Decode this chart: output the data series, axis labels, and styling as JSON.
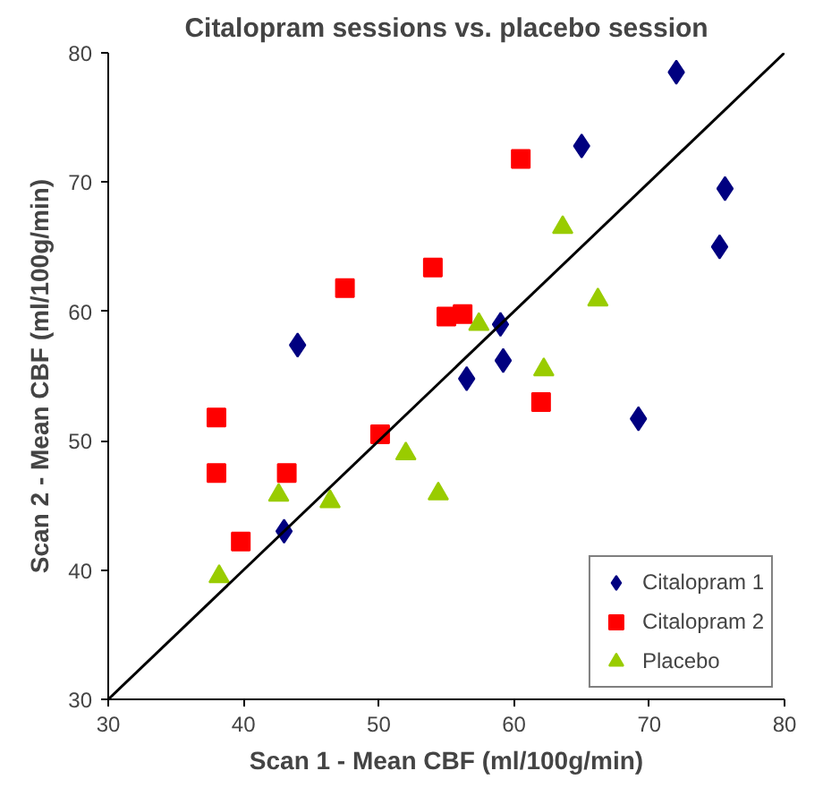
{
  "chart_data": {
    "type": "scatter",
    "title": "Citalopram sessions vs. placebo session",
    "xlabel": "Scan 1 - Mean CBF (ml/100g/min)",
    "ylabel": "Scan 2 - Mean CBF (ml/100g/min)",
    "xlim": [
      30,
      80
    ],
    "ylim": [
      30,
      80
    ],
    "xticks": [
      30,
      40,
      50,
      60,
      70,
      80
    ],
    "yticks": [
      30,
      40,
      50,
      60,
      70,
      80
    ],
    "grid": false,
    "legend": "bottom right",
    "series": [
      {
        "name": "Citalopram 1",
        "color": "#000080",
        "marker": "diamond",
        "x": [
          44,
          43,
          56.5,
          59,
          59.2,
          65,
          72,
          75.6,
          75.2,
          69.2
        ],
        "values": [
          57.4,
          43,
          54.8,
          59,
          56.2,
          72.8,
          78.5,
          69.5,
          65,
          51.7
        ]
      },
      {
        "name": "Citalopram 2",
        "color": "#ff0000",
        "marker": "square",
        "x": [
          38,
          38,
          43.2,
          39.8,
          50.1,
          47.5,
          54,
          55,
          56.2,
          60.5,
          62
        ],
        "values": [
          51.8,
          47.5,
          47.5,
          42.2,
          50.5,
          61.8,
          63.4,
          59.6,
          59.8,
          71.8,
          53
        ]
      },
      {
        "name": "Placebo",
        "color": "#99cc00",
        "marker": "triangle",
        "x": [
          38.2,
          42.6,
          46.4,
          52,
          54.4,
          57.4,
          62.2,
          63.6,
          66.2
        ],
        "values": [
          39.5,
          45.8,
          45.3,
          49,
          45.9,
          59,
          55.5,
          66.5,
          60.9
        ]
      },
      {
        "type": "line",
        "color": "#000000",
        "x": [
          30,
          80
        ],
        "values": [
          30,
          80
        ]
      }
    ]
  }
}
